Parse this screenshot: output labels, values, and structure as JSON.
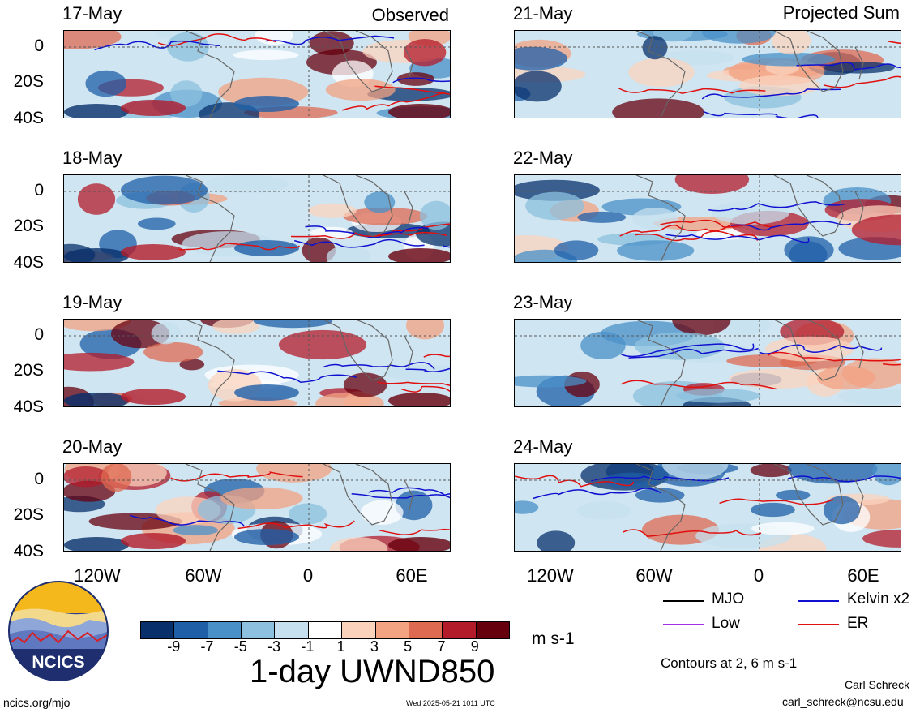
{
  "panels": {
    "observed_header": "Observed",
    "projected_header": "Projected Sum",
    "left_dates": [
      "17-May",
      "18-May",
      "19-May",
      "20-May"
    ],
    "right_dates": [
      "21-May",
      "22-May",
      "23-May",
      "24-May"
    ],
    "lat_labels": [
      "0",
      "20S",
      "40S"
    ],
    "lon_labels": [
      "120W",
      "60W",
      "0",
      "60E"
    ]
  },
  "legend": {
    "mjo": "MJO",
    "kelvin": "Kelvin x2",
    "low": "Low",
    "er": "ER",
    "colors": {
      "mjo": "#000000",
      "kelvin": "#1010d0",
      "low": "#a030e0",
      "er": "#e01010"
    },
    "contours_note": "Contours at 2, 6 m s-1"
  },
  "colorbar": {
    "ticks": [
      "-9",
      "-7",
      "-5",
      "-3",
      "-1",
      "1",
      "3",
      "5",
      "7",
      "9"
    ],
    "colors": [
      "#08306b",
      "#1f5fa8",
      "#4a90c8",
      "#8cc0de",
      "#c6e0ef",
      "#ffffff",
      "#fbd3bd",
      "#f3a282",
      "#de6a52",
      "#b31b2b",
      "#67000d"
    ],
    "units": "m s-1"
  },
  "title": "1-day UWND850",
  "logo": {
    "text": "NCICS"
  },
  "footer": {
    "url": "ncics.org/mjo",
    "timestamp": "Wed 2025-05-21 1011 UTC",
    "author": "Carl Schreck",
    "email": "carl_schreck@ncsu.edu"
  }
}
